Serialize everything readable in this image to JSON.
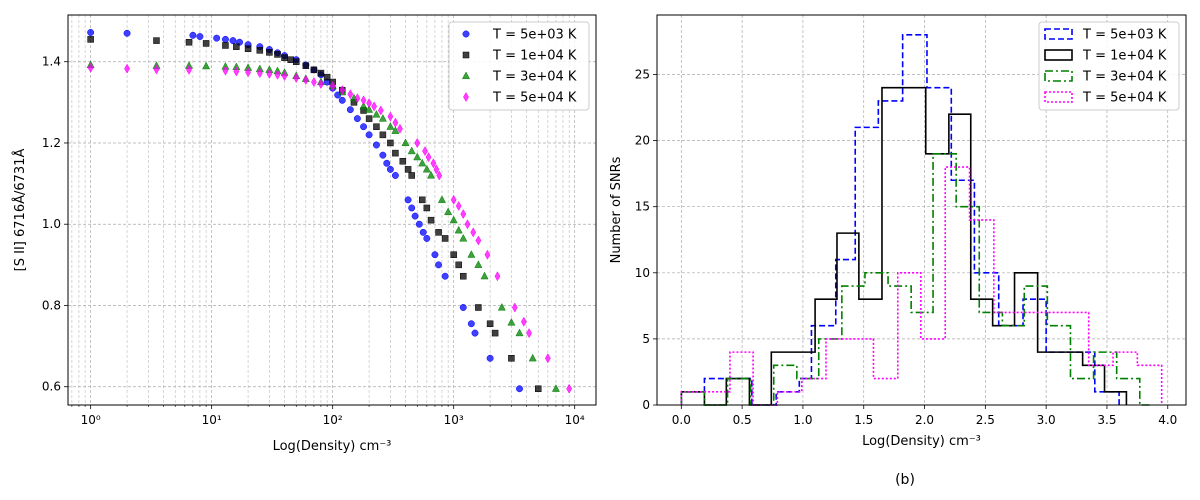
{
  "figure": {
    "caption": "(b)"
  },
  "chart_data": [
    {
      "type": "scatter",
      "xlabel": "Log(Density) cm⁻³",
      "ylabel": "[S II] 6716Å/6731Å",
      "xscale": "log",
      "xlim": [
        0.65,
        15000
      ],
      "ylim": [
        0.555,
        1.515
      ],
      "xticks": [
        1,
        10,
        100,
        1000,
        10000
      ],
      "xtick_labels": [
        "10⁰",
        "10¹",
        "10²",
        "10³",
        "10⁴"
      ],
      "yticks": [
        0.6,
        0.8,
        1.0,
        1.2,
        1.4
      ],
      "ytick_labels": [
        "0.6",
        "0.8",
        "1.0",
        "1.2",
        "1.4"
      ],
      "grid": true,
      "legend_position": "top-right",
      "series": [
        {
          "name": "T = 5e+03 K",
          "marker": "circle",
          "color": "#0000ff",
          "x": [
            1,
            2,
            7,
            8,
            11,
            13,
            15,
            17,
            20,
            25,
            30,
            35,
            40,
            50,
            60,
            70,
            80,
            90,
            100,
            110,
            120,
            140,
            160,
            180,
            200,
            230,
            260,
            280,
            300,
            330,
            420,
            450,
            480,
            520,
            560,
            600,
            700,
            750,
            850,
            1200,
            1400,
            1500,
            2000,
            3500
          ],
          "y": [
            1.472,
            1.47,
            1.465,
            1.462,
            1.458,
            1.455,
            1.452,
            1.448,
            1.442,
            1.437,
            1.43,
            1.422,
            1.415,
            1.405,
            1.392,
            1.38,
            1.368,
            1.35,
            1.335,
            1.318,
            1.305,
            1.282,
            1.26,
            1.24,
            1.22,
            1.195,
            1.17,
            1.15,
            1.135,
            1.12,
            1.06,
            1.04,
            1.02,
            1.0,
            0.98,
            0.965,
            0.925,
            0.9,
            0.872,
            0.795,
            0.755,
            0.732,
            0.67,
            0.595
          ]
        },
        {
          "name": "T = 1e+04 K",
          "marker": "square",
          "color": "#000000",
          "x": [
            1,
            3.5,
            6.5,
            9,
            13,
            16,
            20,
            25,
            30,
            35,
            40,
            45,
            50,
            60,
            70,
            80,
            90,
            100,
            120,
            150,
            180,
            200,
            230,
            260,
            300,
            330,
            380,
            420,
            450,
            550,
            600,
            650,
            750,
            850,
            1000,
            1100,
            1200,
            1600,
            2000,
            2200,
            3000,
            5000
          ],
          "y": [
            1.455,
            1.452,
            1.448,
            1.445,
            1.44,
            1.437,
            1.432,
            1.428,
            1.423,
            1.418,
            1.41,
            1.405,
            1.4,
            1.39,
            1.38,
            1.372,
            1.362,
            1.35,
            1.33,
            1.3,
            1.28,
            1.26,
            1.24,
            1.22,
            1.2,
            1.175,
            1.155,
            1.135,
            1.12,
            1.06,
            1.04,
            1.01,
            0.98,
            0.965,
            0.925,
            0.9,
            0.872,
            0.795,
            0.755,
            0.732,
            0.67,
            0.595
          ]
        },
        {
          "name": "T = 3e+04 K",
          "marker": "triangle",
          "color": "#008000",
          "x": [
            1,
            3.5,
            6.5,
            9,
            13,
            16,
            20,
            25,
            30,
            35,
            40,
            50,
            60,
            80,
            100,
            120,
            150,
            180,
            200,
            230,
            260,
            300,
            330,
            400,
            450,
            500,
            550,
            600,
            650,
            800,
            900,
            1000,
            1100,
            1200,
            1400,
            1600,
            1800,
            2500,
            3000,
            3500,
            4500,
            7000
          ],
          "y": [
            1.392,
            1.39,
            1.39,
            1.389,
            1.388,
            1.387,
            1.385,
            1.382,
            1.38,
            1.377,
            1.373,
            1.365,
            1.358,
            1.35,
            1.34,
            1.325,
            1.31,
            1.29,
            1.282,
            1.27,
            1.26,
            1.24,
            1.23,
            1.2,
            1.18,
            1.165,
            1.15,
            1.135,
            1.12,
            1.06,
            1.03,
            1.01,
            0.985,
            0.965,
            0.925,
            0.9,
            0.872,
            0.795,
            0.758,
            0.732,
            0.67,
            0.595
          ]
        },
        {
          "name": "T = 5e+04 K",
          "marker": "diamond",
          "color": "#ff00ff",
          "x": [
            1,
            2,
            3.5,
            6.5,
            13,
            16,
            20,
            25,
            30,
            35,
            40,
            50,
            60,
            70,
            80,
            100,
            120,
            140,
            160,
            180,
            200,
            220,
            250,
            300,
            330,
            360,
            500,
            580,
            620,
            680,
            720,
            760,
            1000,
            1100,
            1200,
            1300,
            1450,
            1600,
            1900,
            2300,
            3200,
            3800,
            4200,
            6000,
            9000
          ],
          "y": [
            1.385,
            1.383,
            1.381,
            1.38,
            1.378,
            1.376,
            1.374,
            1.372,
            1.37,
            1.368,
            1.365,
            1.36,
            1.355,
            1.35,
            1.345,
            1.34,
            1.33,
            1.32,
            1.31,
            1.305,
            1.298,
            1.29,
            1.28,
            1.265,
            1.25,
            1.235,
            1.2,
            1.18,
            1.165,
            1.15,
            1.135,
            1.12,
            1.06,
            1.045,
            1.025,
            1.0,
            0.98,
            0.96,
            0.925,
            0.872,
            0.795,
            0.76,
            0.732,
            0.67,
            0.595
          ]
        }
      ]
    },
    {
      "type": "histogram",
      "xlabel": "Log(Density) cm⁻³",
      "ylabel": "Number of SNRs",
      "xlim": [
        -0.2,
        4.15
      ],
      "ylim": [
        0,
        29.5
      ],
      "xticks": [
        0.0,
        0.5,
        1.0,
        1.5,
        2.0,
        2.5,
        3.0,
        3.5,
        4.0
      ],
      "xtick_labels": [
        "0.0",
        "0.5",
        "1.0",
        "1.5",
        "2.0",
        "2.5",
        "3.0",
        "3.5",
        "4.0"
      ],
      "yticks": [
        0,
        5,
        10,
        15,
        20,
        25
      ],
      "ytick_labels": [
        "0",
        "5",
        "10",
        "15",
        "20",
        "25"
      ],
      "grid": true,
      "legend_position": "top-right",
      "series": [
        {
          "name": "T = 5e+03 K",
          "color": "#0000ff",
          "linestyle": "dashed",
          "edges": [
            0.0,
            0.19,
            0.39,
            0.58,
            0.78,
            0.97,
            1.07,
            1.27,
            1.43,
            1.62,
            1.82,
            2.02,
            2.22,
            2.41,
            2.61,
            2.81,
            3.0,
            3.2,
            3.4,
            3.6
          ],
          "values": [
            1,
            2,
            2,
            0,
            1,
            2,
            6,
            11,
            21,
            23,
            28,
            24,
            17,
            10,
            6,
            8,
            4,
            4,
            1
          ]
        },
        {
          "name": "T = 1e+04 K",
          "color": "#000000",
          "linestyle": "solid",
          "edges": [
            0.0,
            0.19,
            0.37,
            0.56,
            0.74,
            1.1,
            1.28,
            1.46,
            1.65,
            1.83,
            2.01,
            2.2,
            2.38,
            2.56,
            2.74,
            2.93,
            3.11,
            3.3,
            3.48,
            3.66
          ],
          "values": [
            1,
            0,
            2,
            0,
            4,
            8,
            13,
            8,
            24,
            24,
            19,
            22,
            8,
            6,
            10,
            4,
            4,
            3,
            1
          ]
        },
        {
          "name": "T = 3e+04 K",
          "color": "#008000",
          "linestyle": "dashdot",
          "edges": [
            0.0,
            0.19,
            0.38,
            0.57,
            0.76,
            0.95,
            1.13,
            1.32,
            1.51,
            1.7,
            1.89,
            2.07,
            2.26,
            2.45,
            2.64,
            2.82,
            3.01,
            3.2,
            3.39,
            3.58,
            3.77,
            3.85
          ],
          "values": [
            1,
            0,
            2,
            0,
            3,
            2,
            5,
            9,
            10,
            9,
            7,
            19,
            15,
            7,
            6,
            9,
            6,
            2,
            4,
            2,
            0
          ]
        },
        {
          "name": "T = 5e+04 K",
          "color": "#ff00ff",
          "linestyle": "dotted",
          "edges": [
            0.0,
            0.2,
            0.4,
            0.59,
            0.79,
            0.99,
            1.19,
            1.38,
            1.58,
            1.78,
            1.97,
            2.17,
            2.37,
            2.57,
            2.76,
            2.96,
            3.16,
            3.35,
            3.55,
            3.75,
            3.95
          ],
          "values": [
            1,
            1,
            4,
            0,
            1,
            2,
            5,
            5,
            2,
            10,
            5,
            18,
            14,
            7,
            7,
            7,
            7,
            3,
            4,
            3
          ]
        }
      ]
    }
  ]
}
